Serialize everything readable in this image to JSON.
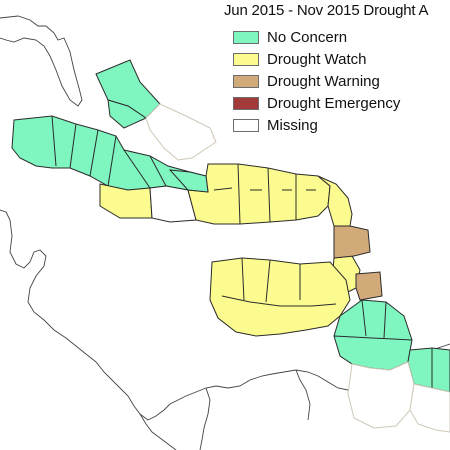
{
  "map": {
    "title": "Jun 2015 - Nov 2015 Drought A",
    "legend": [
      {
        "key": "none",
        "label": "No Concern",
        "color": "#7ff5c0"
      },
      {
        "key": "watch",
        "label": "Drought Watch",
        "color": "#fbfb8f"
      },
      {
        "key": "warning",
        "label": "Drought Warning",
        "color": "#d2aa7a"
      },
      {
        "key": "emergency",
        "label": "Drought Emergency",
        "color": "#a23a3a"
      },
      {
        "key": "missing",
        "label": "Missing",
        "color": "#ffffff"
      }
    ],
    "colors": {
      "outline": "#2b2b2b",
      "land": "#bfbfbf",
      "missing_border": "#cfc8b8"
    }
  }
}
